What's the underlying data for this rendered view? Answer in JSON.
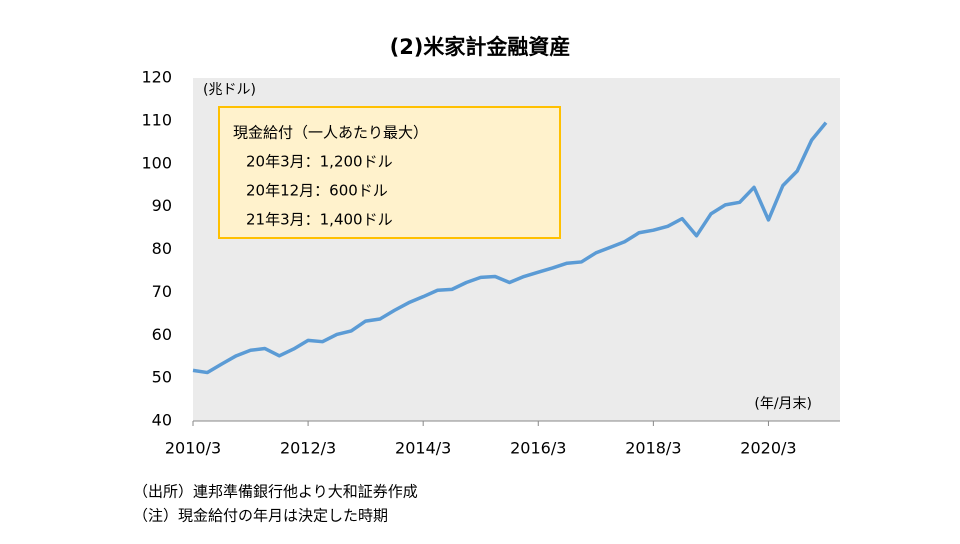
{
  "chart_data": {
    "type": "line",
    "title": "(2)米家計金融資産",
    "y_unit": "(兆ドル)",
    "x_unit": "(年/月末)",
    "annotation": [
      "現金給付（一人あたり最大）",
      "20年3月：1,200ドル",
      "20年12月：600ドル",
      "21年3月：1,400ドル"
    ],
    "notes": [
      "（出所）連邦準備銀行他より大和証券作成",
      "（注）現金給付の年月は決定した時期"
    ],
    "categories": [
      "2010/3",
      null,
      null,
      null,
      null,
      null,
      null,
      null,
      "2012/3",
      null,
      null,
      null,
      null,
      null,
      null,
      null,
      "2014/3",
      null,
      null,
      null,
      null,
      null,
      null,
      null,
      "2016/3",
      null,
      null,
      null,
      null,
      null,
      null,
      null,
      "2018/3",
      null,
      null,
      null,
      null,
      null,
      null,
      null,
      "2020/3",
      null,
      null,
      null,
      null
    ],
    "series": [
      {
        "name": "米家計金融資産",
        "color": "#5b9bd5",
        "values": [
          51.8,
          51.3,
          53.3,
          55.2,
          56.5,
          56.9,
          55.2,
          56.8,
          58.8,
          58.5,
          60.2,
          61.0,
          63.3,
          63.8,
          65.8,
          67.6,
          69.0,
          70.5,
          70.7,
          72.3,
          73.5,
          73.7,
          72.3,
          73.7,
          74.7,
          75.7,
          76.8,
          77.1,
          79.2,
          80.5,
          81.8,
          83.9,
          84.5,
          85.4,
          87.2,
          83.2,
          88.3,
          90.4,
          91.0,
          94.5,
          86.9,
          94.9,
          98.3,
          105.5,
          109.6
        ]
      }
    ],
    "ylim": [
      40,
      120
    ],
    "yticks": [
      40,
      50,
      60,
      70,
      80,
      90,
      100,
      110,
      120
    ],
    "grid": false
  }
}
